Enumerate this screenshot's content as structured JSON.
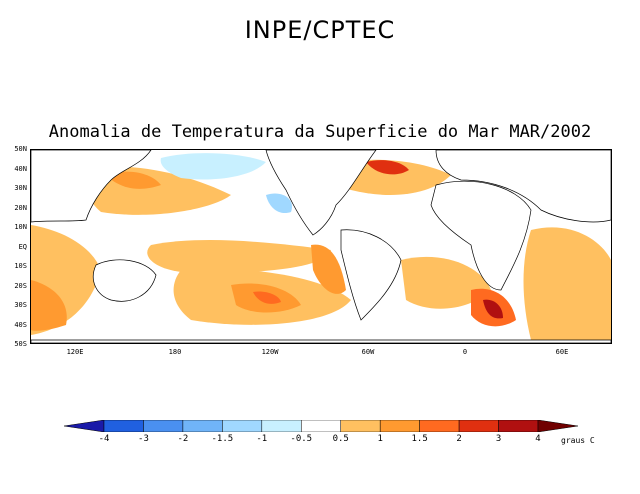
{
  "header": {
    "title": "INPE/CPTEC"
  },
  "map": {
    "title": "Anomalia de Temperatura da Superficie do Mar MAR/2002",
    "lat_labels": [
      "50N",
      "40N",
      "30N",
      "20N",
      "10N",
      "EQ",
      "10S",
      "20S",
      "30S",
      "40S",
      "50S"
    ],
    "lon_labels": [
      "120E",
      "180",
      "120W",
      "60W",
      "0",
      "60E"
    ]
  },
  "colorbar": {
    "labels": [
      "-4",
      "-3",
      "-2",
      "-1.5",
      "-1",
      "-0.5",
      "0.5",
      "1",
      "1.5",
      "2",
      "3",
      "4"
    ],
    "colors": [
      "#1a1aa8",
      "#2060e0",
      "#4a90f0",
      "#70b4f8",
      "#a0d8ff",
      "#c8f0ff",
      "#ffffff",
      "#ffc060",
      "#ff9a30",
      "#ff6a20",
      "#e03010",
      "#b01010",
      "#700000"
    ],
    "units": "graus C"
  },
  "palette": {
    "land": "#ffffff",
    "warm_weak": "#ffc060",
    "warm": "#ff9a30",
    "warm_strong": "#ff6a20",
    "hot": "#e03010",
    "cool_weak": "#c8f0ff",
    "cool": "#a0d8ff"
  }
}
